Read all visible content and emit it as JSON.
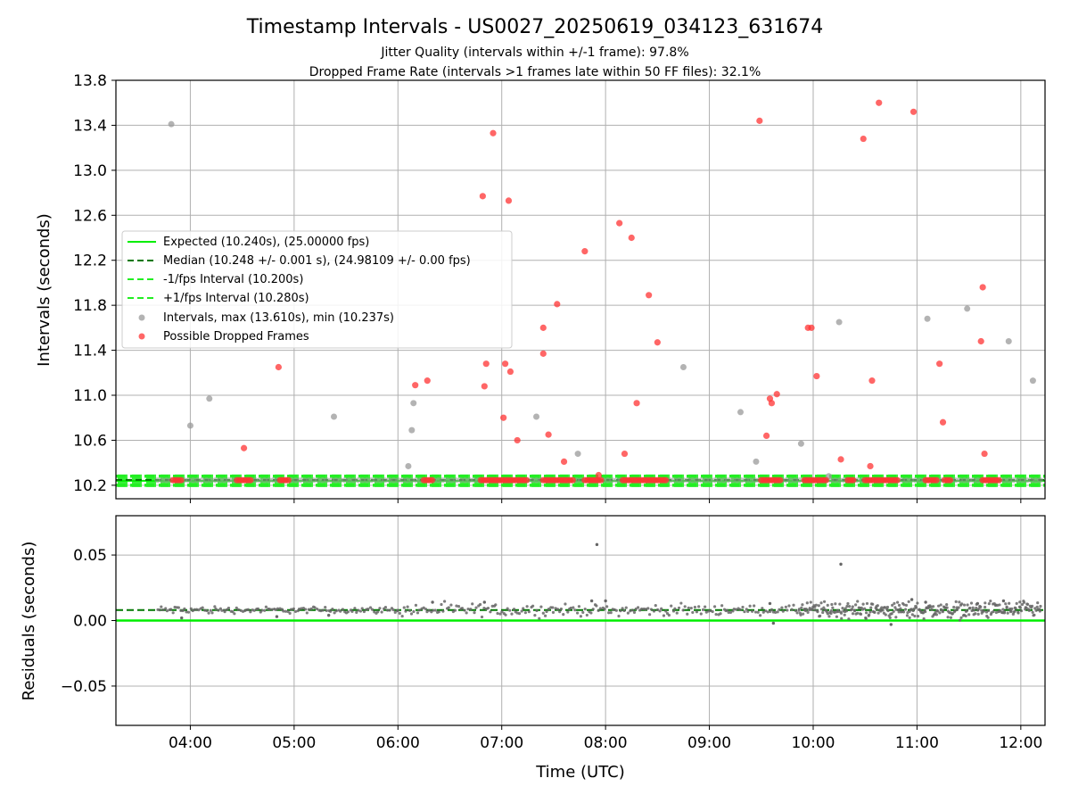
{
  "title": "Timestamp Intervals - US0027_20250619_034123_631674",
  "subtitle_jitter": "Jitter Quality (intervals within +/-1 frame): 97.8%",
  "subtitle_dropped": "Dropped Frame Rate (intervals >1 frames late within 50 FF files): 32.1%",
  "colors": {
    "expected": "#00ee00",
    "median": "#007700",
    "fps_band": "#22ee22",
    "intervals": "#999999",
    "dropped": "#ff3333",
    "residuals": "#666666",
    "grid": "#b0b0b0"
  },
  "chart_data": [
    {
      "type": "scatter",
      "xlabel": "",
      "ylabel": "Intervals (seconds)",
      "xlim": [
        "03:17",
        "12:14"
      ],
      "ylim": [
        10.08,
        13.8
      ],
      "yticks": [
        10.2,
        10.6,
        11.0,
        11.4,
        11.8,
        12.2,
        12.6,
        13.0,
        13.4,
        13.8
      ],
      "ytick_labels": [
        "10.2",
        "10.6",
        "11.0",
        "11.4",
        "11.8",
        "12.2",
        "12.6",
        "13.0",
        "13.4",
        "13.8"
      ],
      "grid": true,
      "legend_position": "center-left",
      "x_range": [
        "03:41",
        "12:12"
      ],
      "lines": [
        {
          "name": "Expected (10.240s), (25.00000 fps)",
          "y": 10.24,
          "style": "solid",
          "color": "#00ee00"
        },
        {
          "name": "Median (10.248 +/- 0.001 s), (24.98109 +/- 0.00 fps)",
          "y": 10.248,
          "style": "dashed",
          "color": "#007700"
        },
        {
          "name": "-1/fps Interval (10.200s)",
          "y": 10.2,
          "style": "dashed",
          "color": "#22ee22"
        },
        {
          "name": "+1/fps Interval (10.280s)",
          "y": 10.28,
          "style": "dashed",
          "color": "#22ee22"
        }
      ],
      "series": [
        {
          "name": "Intervals, max (13.610s), min (10.237s)",
          "color": "#999999",
          "points": [
            [
              "03:49",
              13.41
            ],
            [
              "04:00",
              10.73
            ],
            [
              "04:11",
              10.97
            ],
            [
              "05:23",
              10.81
            ],
            [
              "06:06",
              10.37
            ],
            [
              "06:08",
              10.69
            ],
            [
              "06:09",
              10.93
            ],
            [
              "07:20",
              10.81
            ],
            [
              "07:44",
              10.48
            ],
            [
              "08:45",
              11.25
            ],
            [
              "09:18",
              10.85
            ],
            [
              "09:27",
              10.41
            ],
            [
              "09:53",
              10.57
            ],
            [
              "10:09",
              10.28
            ],
            [
              "10:15",
              11.65
            ],
            [
              "11:06",
              11.68
            ],
            [
              "11:29",
              11.77
            ],
            [
              "11:53",
              11.48
            ],
            [
              "12:07",
              11.13
            ]
          ]
        },
        {
          "name": "Possible Dropped Frames",
          "color": "#ff3333",
          "points": [
            [
              "04:31",
              10.53
            ],
            [
              "04:51",
              11.25
            ],
            [
              "06:10",
              11.09
            ],
            [
              "06:17",
              11.13
            ],
            [
              "06:49",
              12.77
            ],
            [
              "06:50",
              11.08
            ],
            [
              "06:51",
              11.28
            ],
            [
              "06:55",
              13.33
            ],
            [
              "07:01",
              10.8
            ],
            [
              "07:02",
              11.28
            ],
            [
              "07:04",
              12.73
            ],
            [
              "07:05",
              11.21
            ],
            [
              "07:09",
              10.6
            ],
            [
              "07:24",
              11.6
            ],
            [
              "07:24",
              11.37
            ],
            [
              "07:27",
              10.65
            ],
            [
              "07:32",
              11.81
            ],
            [
              "07:36",
              10.41
            ],
            [
              "07:48",
              12.28
            ],
            [
              "07:56",
              10.29
            ],
            [
              "08:08",
              12.53
            ],
            [
              "08:11",
              10.48
            ],
            [
              "08:15",
              12.4
            ],
            [
              "08:18",
              10.93
            ],
            [
              "08:25",
              11.89
            ],
            [
              "08:30",
              11.47
            ],
            [
              "09:29",
              13.44
            ],
            [
              "09:33",
              10.64
            ],
            [
              "09:35",
              10.97
            ],
            [
              "09:36",
              10.93
            ],
            [
              "09:39",
              11.01
            ],
            [
              "09:57",
              11.6
            ],
            [
              "09:59",
              11.6
            ],
            [
              "10:02",
              11.17
            ],
            [
              "10:16",
              10.43
            ],
            [
              "10:29",
              13.28
            ],
            [
              "10:33",
              10.37
            ],
            [
              "10:34",
              11.13
            ],
            [
              "10:38",
              13.6
            ],
            [
              "10:58",
              13.52
            ],
            [
              "11:13",
              11.28
            ],
            [
              "11:15",
              10.76
            ],
            [
              "11:37",
              11.48
            ],
            [
              "11:38",
              11.96
            ],
            [
              "11:39",
              10.48
            ]
          ]
        }
      ],
      "dropped_baseline_clusters": [
        [
          "03:50",
          "03:56"
        ],
        [
          "04:27",
          "04:36"
        ],
        [
          "04:52",
          "04:58"
        ],
        [
          "06:15",
          "06:21"
        ],
        [
          "06:48",
          "07:15"
        ],
        [
          "07:24",
          "07:42"
        ],
        [
          "07:48",
          "07:58"
        ],
        [
          "08:10",
          "08:35"
        ],
        [
          "09:30",
          "09:42"
        ],
        [
          "09:55",
          "10:08"
        ],
        [
          "10:20",
          "10:24"
        ],
        [
          "10:30",
          "10:50"
        ],
        [
          "11:05",
          "11:12"
        ],
        [
          "11:16",
          "11:20"
        ],
        [
          "11:38",
          "11:48"
        ]
      ]
    },
    {
      "type": "scatter",
      "xlabel": "Time (UTC)",
      "ylabel": "Residuals (seconds)",
      "xlim": [
        "03:17",
        "12:14"
      ],
      "ylim": [
        -0.08,
        0.08
      ],
      "yticks": [
        -0.05,
        0.0,
        0.05
      ],
      "ytick_labels": [
        "−0.05",
        "0.00",
        "0.05"
      ],
      "xticks": [
        "04:00",
        "05:00",
        "06:00",
        "07:00",
        "08:00",
        "09:00",
        "10:00",
        "11:00",
        "12:00"
      ],
      "xtick_labels": [
        "04:00",
        "05:00",
        "06:00",
        "07:00",
        "08:00",
        "09:00",
        "10:00",
        "11:00",
        "12:00"
      ],
      "grid": true,
      "lines": [
        {
          "name": "Expected",
          "y": 0.0,
          "style": "solid",
          "color": "#00ee00"
        },
        {
          "name": "Median",
          "y": 0.008,
          "style": "dashed",
          "color": "#007700"
        }
      ],
      "series": [
        {
          "name": "Residuals",
          "color": "#666666",
          "center": 0.008,
          "outliers": [
            [
              "07:55",
              0.058
            ],
            [
              "10:16",
              0.043
            ],
            [
              "08:00",
              0.015
            ],
            [
              "06:50",
              0.014
            ],
            [
              "07:52",
              0.015
            ],
            [
              "09:35",
              0.013
            ],
            [
              "10:57",
              0.016
            ],
            [
              "11:05",
              0.014
            ],
            [
              "11:35",
              0.013
            ],
            [
              "11:50",
              0.015
            ],
            [
              "10:45",
              -0.003
            ],
            [
              "09:37",
              -0.002
            ],
            [
              "03:55",
              0.002
            ],
            [
              "04:50",
              0.003
            ],
            [
              "06:20",
              0.014
            ],
            [
              "05:20",
              0.004
            ]
          ],
          "dense_regions": [
            [
              "03:41",
              "04:20",
              0.002
            ],
            [
              "04:20",
              "06:00",
              0.0015
            ],
            [
              "06:00",
              "07:30",
              0.003
            ],
            [
              "07:30",
              "09:10",
              0.0025
            ],
            [
              "09:10",
              "09:52",
              0.002
            ],
            [
              "09:52",
              "12:12",
              0.004
            ]
          ]
        }
      ]
    }
  ]
}
